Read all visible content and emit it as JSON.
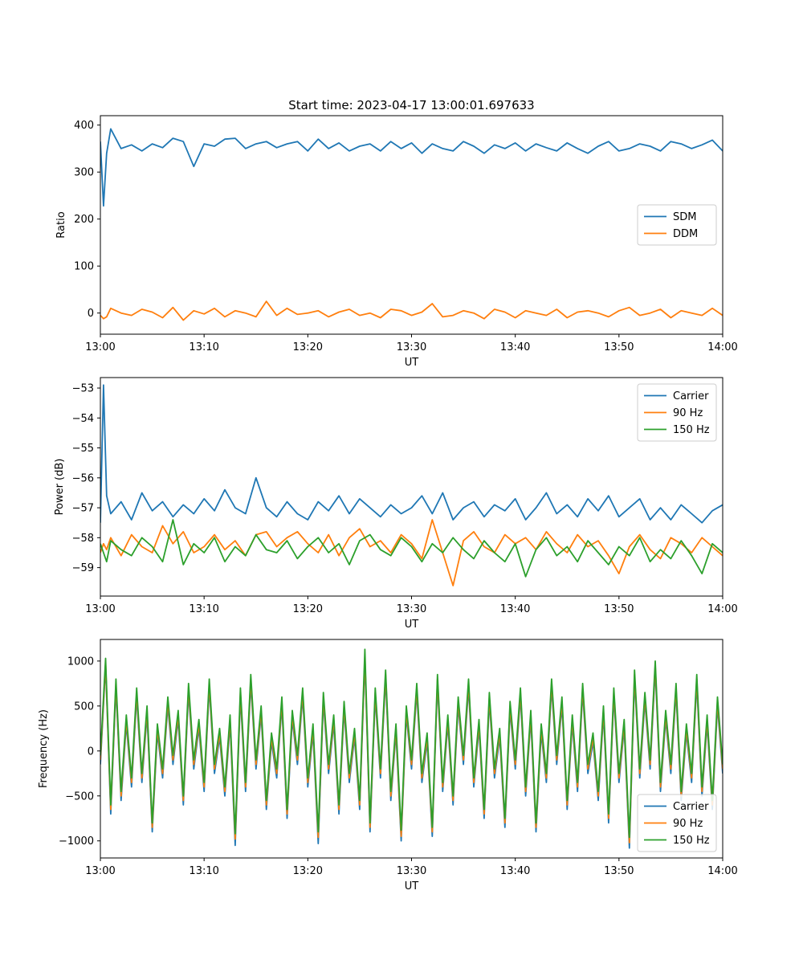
{
  "figure": {
    "title": "Start time: 2023-04-17 13:00:01.697633"
  },
  "colors": {
    "blue": "#1f77b4",
    "orange": "#ff7f0e",
    "green": "#2ca02c",
    "legend_edge": "#cccccc",
    "axes_edge": "#000000"
  },
  "chart_data": [
    {
      "type": "line",
      "title": "Start time: 2023-04-17 13:00:01.697633",
      "xlabel": "UT",
      "ylabel": "Ratio",
      "xlim": [
        "13:00",
        "14:00"
      ],
      "ylim": [
        -45,
        420
      ],
      "x_ticks": [
        "13:00",
        "13:10",
        "13:20",
        "13:30",
        "13:40",
        "13:50",
        "14:00"
      ],
      "y_ticks": [
        0,
        100,
        200,
        300,
        400
      ],
      "y_tick_labels": [
        "0",
        "100",
        "200",
        "300",
        "400"
      ],
      "legend": "center-right",
      "grid": false,
      "x_minutes": [
        0,
        0.3,
        0.6,
        1,
        2,
        3,
        4,
        5,
        6,
        7,
        8,
        9,
        10,
        11,
        12,
        13,
        14,
        15,
        16,
        17,
        18,
        19,
        20,
        21,
        22,
        23,
        24,
        25,
        26,
        27,
        28,
        29,
        30,
        31,
        32,
        33,
        34,
        35,
        36,
        37,
        38,
        39,
        40,
        41,
        42,
        43,
        44,
        45,
        46,
        47,
        48,
        49,
        50,
        51,
        52,
        53,
        54,
        55,
        56,
        57,
        58,
        59,
        60
      ],
      "series": [
        {
          "name": "SDM",
          "color": "#1f77b4",
          "values": [
            365,
            228,
            340,
            392,
            350,
            358,
            345,
            360,
            352,
            372,
            365,
            312,
            360,
            355,
            370,
            372,
            350,
            360,
            365,
            352,
            360,
            365,
            345,
            370,
            350,
            362,
            345,
            355,
            360,
            345,
            365,
            350,
            362,
            340,
            360,
            350,
            345,
            365,
            355,
            340,
            358,
            350,
            362,
            345,
            360,
            352,
            345,
            362,
            350,
            340,
            355,
            365,
            345,
            350,
            360,
            355,
            345,
            365,
            360,
            350,
            358,
            368,
            345
          ]
        },
        {
          "name": "DDM",
          "color": "#ff7f0e",
          "values": [
            -5,
            -12,
            -8,
            10,
            0,
            -5,
            8,
            2,
            -10,
            12,
            -15,
            5,
            -2,
            10,
            -8,
            5,
            0,
            -8,
            25,
            -5,
            10,
            -3,
            0,
            5,
            -8,
            2,
            8,
            -5,
            0,
            -10,
            8,
            5,
            -5,
            2,
            20,
            -8,
            -5,
            5,
            0,
            -12,
            8,
            2,
            -10,
            5,
            0,
            -5,
            8,
            -10,
            2,
            5,
            0,
            -8,
            5,
            12,
            -5,
            0,
            8,
            -10,
            5,
            0,
            -5,
            10,
            -5
          ]
        }
      ]
    },
    {
      "type": "line",
      "title": "",
      "xlabel": "UT",
      "ylabel": "Power (dB)",
      "xlim": [
        "13:00",
        "14:00"
      ],
      "ylim": [
        -59.95,
        -52.65
      ],
      "x_ticks": [
        "13:00",
        "13:10",
        "13:20",
        "13:30",
        "13:40",
        "13:50",
        "14:00"
      ],
      "y_ticks": [
        -59,
        -58,
        -57,
        -56,
        -55,
        -54,
        -53
      ],
      "y_tick_labels": [
        "−59",
        "−58",
        "−57",
        "−56",
        "−55",
        "−54",
        "−53"
      ],
      "legend": "top-right",
      "grid": false,
      "x_minutes": [
        0,
        0.3,
        0.6,
        1,
        2,
        3,
        4,
        5,
        6,
        7,
        8,
        9,
        10,
        11,
        12,
        13,
        14,
        15,
        16,
        17,
        18,
        19,
        20,
        21,
        22,
        23,
        24,
        25,
        26,
        27,
        28,
        29,
        30,
        31,
        32,
        33,
        34,
        35,
        36,
        37,
        38,
        39,
        40,
        41,
        42,
        43,
        44,
        45,
        46,
        47,
        48,
        49,
        50,
        51,
        52,
        53,
        54,
        55,
        56,
        57,
        58,
        59,
        60
      ],
      "series": [
        {
          "name": "Carrier",
          "color": "#1f77b4",
          "values": [
            -57.5,
            -52.9,
            -56.6,
            -57.2,
            -56.8,
            -57.4,
            -56.5,
            -57.1,
            -56.8,
            -57.3,
            -56.9,
            -57.2,
            -56.7,
            -57.1,
            -56.4,
            -57.0,
            -57.2,
            -56.0,
            -57.0,
            -57.3,
            -56.8,
            -57.2,
            -57.4,
            -56.8,
            -57.1,
            -56.6,
            -57.2,
            -56.7,
            -57.0,
            -57.3,
            -56.9,
            -57.2,
            -57.0,
            -56.6,
            -57.2,
            -56.5,
            -57.4,
            -57.0,
            -56.8,
            -57.3,
            -56.9,
            -57.1,
            -56.7,
            -57.4,
            -57.0,
            -56.5,
            -57.2,
            -56.9,
            -57.3,
            -56.7,
            -57.1,
            -56.6,
            -57.3,
            -57.0,
            -56.7,
            -57.4,
            -57.0,
            -57.4,
            -56.9,
            -57.2,
            -57.5,
            -57.1,
            -56.9
          ]
        },
        {
          "name": "90 Hz",
          "color": "#ff7f0e",
          "values": [
            -58.5,
            -58.2,
            -58.4,
            -58.0,
            -58.6,
            -57.9,
            -58.3,
            -58.5,
            -57.6,
            -58.2,
            -57.8,
            -58.5,
            -58.3,
            -57.9,
            -58.4,
            -58.1,
            -58.6,
            -57.9,
            -57.8,
            -58.3,
            -58.0,
            -57.8,
            -58.2,
            -58.5,
            -57.9,
            -58.6,
            -58.0,
            -57.7,
            -58.3,
            -58.1,
            -58.5,
            -57.9,
            -58.2,
            -58.7,
            -57.4,
            -58.5,
            -59.6,
            -58.1,
            -57.8,
            -58.3,
            -58.5,
            -57.9,
            -58.2,
            -58.0,
            -58.4,
            -57.8,
            -58.2,
            -58.5,
            -57.9,
            -58.3,
            -58.1,
            -58.6,
            -59.2,
            -58.3,
            -57.9,
            -58.4,
            -58.7,
            -58.0,
            -58.2,
            -58.5,
            -58.0,
            -58.3,
            -58.6
          ]
        },
        {
          "name": "150 Hz",
          "color": "#2ca02c",
          "values": [
            -58.2,
            -58.5,
            -58.8,
            -58.1,
            -58.4,
            -58.6,
            -58.0,
            -58.3,
            -58.8,
            -57.4,
            -58.9,
            -58.2,
            -58.5,
            -58.0,
            -58.8,
            -58.3,
            -58.6,
            -57.9,
            -58.4,
            -58.5,
            -58.1,
            -58.7,
            -58.3,
            -58.0,
            -58.5,
            -58.2,
            -58.9,
            -58.1,
            -57.9,
            -58.4,
            -58.6,
            -58.0,
            -58.3,
            -58.8,
            -58.2,
            -58.5,
            -58.0,
            -58.4,
            -58.7,
            -58.1,
            -58.5,
            -58.8,
            -58.2,
            -59.3,
            -58.4,
            -58.0,
            -58.6,
            -58.3,
            -58.8,
            -58.1,
            -58.5,
            -58.9,
            -58.3,
            -58.6,
            -58.0,
            -58.8,
            -58.4,
            -58.7,
            -58.1,
            -58.6,
            -59.2,
            -58.2,
            -58.5
          ]
        }
      ]
    },
    {
      "type": "line",
      "title": "",
      "xlabel": "UT",
      "ylabel": "Frequency (Hz)",
      "xlim": [
        "13:00",
        "14:00"
      ],
      "ylim": [
        -1190,
        1240
      ],
      "x_ticks": [
        "13:00",
        "13:10",
        "13:20",
        "13:30",
        "13:40",
        "13:50",
        "14:00"
      ],
      "y_ticks": [
        -1000,
        -500,
        0,
        500,
        1000
      ],
      "y_tick_labels": [
        "−1000",
        "−500",
        "0",
        "500",
        "1000"
      ],
      "legend": "bottom-right",
      "grid": false,
      "x_minutes": [
        0,
        0.5,
        1,
        1.5,
        2,
        2.5,
        3,
        3.5,
        4,
        4.5,
        5,
        5.5,
        6,
        6.5,
        7,
        7.5,
        8,
        8.5,
        9,
        9.5,
        10,
        10.5,
        11,
        11.5,
        12,
        12.5,
        13,
        13.5,
        14,
        14.5,
        15,
        15.5,
        16,
        16.5,
        17,
        17.5,
        18,
        18.5,
        19,
        19.5,
        20,
        20.5,
        21,
        21.5,
        22,
        22.5,
        23,
        23.5,
        24,
        24.5,
        25,
        25.5,
        26,
        26.5,
        27,
        27.5,
        28,
        28.5,
        29,
        29.5,
        30,
        30.5,
        31,
        31.5,
        32,
        32.5,
        33,
        33.5,
        34,
        34.5,
        35,
        35.5,
        36,
        36.5,
        37,
        37.5,
        38,
        38.5,
        39,
        39.5,
        40,
        40.5,
        41,
        41.5,
        42,
        42.5,
        43,
        43.5,
        44,
        44.5,
        45,
        45.5,
        46,
        46.5,
        47,
        47.5,
        48,
        48.5,
        49,
        49.5,
        50,
        50.5,
        51,
        51.5,
        52,
        52.5,
        53,
        53.5,
        54,
        54.5,
        55,
        55.5,
        56,
        56.5,
        57,
        57.5,
        58,
        58.5,
        59,
        59.5,
        60
      ],
      "series": [
        {
          "name": "Carrier",
          "color": "#1f77b4",
          "values": [
            -150,
            950,
            -700,
            700,
            -550,
            300,
            -400,
            600,
            -350,
            400,
            -900,
            200,
            -300,
            500,
            -150,
            350,
            -600,
            650,
            -200,
            250,
            -450,
            700,
            -250,
            150,
            -500,
            300,
            -1050,
            600,
            -450,
            750,
            -200,
            400,
            -650,
            100,
            -300,
            500,
            -750,
            350,
            -150,
            600,
            -400,
            200,
            -1030,
            550,
            -250,
            300,
            -700,
            450,
            -350,
            150,
            -650,
            1000,
            -900,
            600,
            -300,
            800,
            -550,
            200,
            -1000,
            400,
            -200,
            650,
            -350,
            100,
            -950,
            750,
            -450,
            300,
            -600,
            500,
            -150,
            700,
            -400,
            250,
            -750,
            550,
            -300,
            150,
            -850,
            450,
            -200,
            600,
            -500,
            350,
            -900,
            200,
            -350,
            700,
            -150,
            500,
            -650,
            300,
            -450,
            650,
            -250,
            100,
            -550,
            400,
            -800,
            600,
            -350,
            250,
            -1080,
            800,
            -300,
            550,
            -200,
            900,
            -450,
            350,
            -250,
            650,
            -550,
            200,
            -350,
            750,
            -500,
            300,
            -650,
            500,
            -250
          ]
        },
        {
          "name": "90 Hz",
          "color": "#ff7f0e",
          "values": [
            -100,
            980,
            -650,
            750,
            -500,
            350,
            -350,
            650,
            -300,
            450,
            -850,
            250,
            -250,
            550,
            -100,
            400,
            -550,
            700,
            -150,
            300,
            -400,
            750,
            -200,
            200,
            -450,
            350,
            -980,
            650,
            -400,
            800,
            -150,
            450,
            -600,
            150,
            -250,
            550,
            -700,
            400,
            -100,
            650,
            -350,
            250,
            -960,
            600,
            -200,
            350,
            -650,
            500,
            -300,
            200,
            -600,
            1050,
            -850,
            650,
            -250,
            850,
            -500,
            250,
            -950,
            450,
            -150,
            700,
            -300,
            150,
            -900,
            800,
            -400,
            350,
            -550,
            550,
            -100,
            750,
            -350,
            300,
            -700,
            600,
            -250,
            200,
            -800,
            500,
            -150,
            650,
            -450,
            400,
            -850,
            250,
            -300,
            750,
            -100,
            550,
            -600,
            350,
            -400,
            700,
            -200,
            150,
            -500,
            450,
            -750,
            650,
            -300,
            300,
            -1020,
            850,
            -250,
            600,
            -150,
            950,
            -400,
            400,
            -200,
            700,
            -500,
            250,
            -300,
            800,
            -450,
            350,
            -600,
            550,
            -200
          ]
        },
        {
          "name": "150 Hz",
          "color": "#2ca02c",
          "values": [
            -50,
            1030,
            -600,
            800,
            -450,
            400,
            -300,
            700,
            -250,
            500,
            -800,
            300,
            -200,
            600,
            -50,
            450,
            -500,
            750,
            -100,
            350,
            -350,
            800,
            -150,
            250,
            -400,
            400,
            -920,
            700,
            -350,
            850,
            -100,
            500,
            -550,
            200,
            -200,
            600,
            -650,
            450,
            -50,
            700,
            -300,
            300,
            -900,
            650,
            -150,
            400,
            -600,
            550,
            -250,
            250,
            -550,
            1130,
            -800,
            700,
            -200,
            900,
            -450,
            300,
            -880,
            500,
            -100,
            750,
            -250,
            200,
            -850,
            850,
            -350,
            400,
            -500,
            600,
            -50,
            800,
            -300,
            350,
            -650,
            650,
            -200,
            250,
            -750,
            550,
            -100,
            700,
            -400,
            450,
            -800,
            300,
            -250,
            800,
            -50,
            600,
            -550,
            400,
            -350,
            750,
            -150,
            200,
            -450,
            500,
            -700,
            700,
            -250,
            350,
            -960,
            900,
            -200,
            650,
            -100,
            1000,
            -350,
            450,
            -150,
            750,
            -450,
            300,
            -250,
            850,
            -400,
            400,
            -550,
            600,
            -150
          ]
        }
      ]
    }
  ]
}
